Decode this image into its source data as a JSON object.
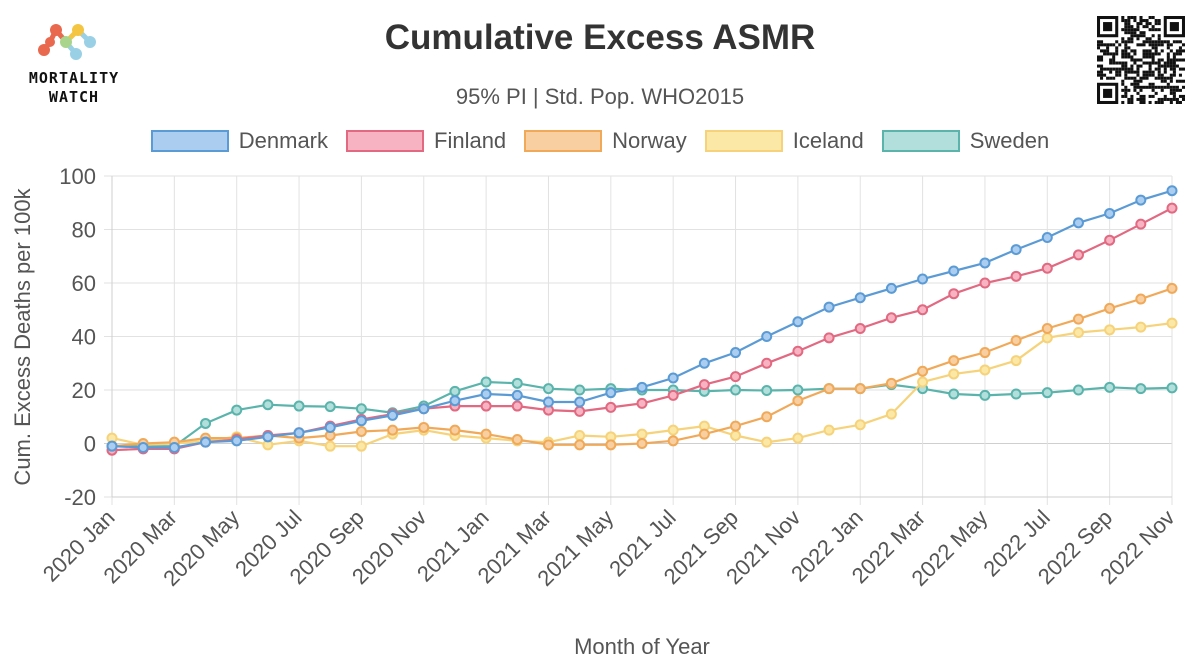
{
  "logo": {
    "line1": "MORTALITY",
    "line2": "WATCH"
  },
  "chart_data": {
    "type": "line",
    "title": "Cumulative Excess ASMR",
    "subtitle": "95% PI | Std. Pop. WHO2015",
    "xlabel": "Month of Year",
    "ylabel": "Cum. Excess Deaths per 100k",
    "ylim": [
      -20,
      100
    ],
    "yticks": [
      -20,
      0,
      20,
      40,
      60,
      80,
      100
    ],
    "grid": true,
    "legend_position": "top",
    "x": [
      "2020 Jan",
      "2020 Feb",
      "2020 Mar",
      "2020 Apr",
      "2020 May",
      "2020 Jun",
      "2020 Jul",
      "2020 Aug",
      "2020 Sep",
      "2020 Oct",
      "2020 Nov",
      "2020 Dec",
      "2021 Jan",
      "2021 Feb",
      "2021 Mar",
      "2021 Apr",
      "2021 May",
      "2021 Jun",
      "2021 Jul",
      "2021 Aug",
      "2021 Sep",
      "2021 Oct",
      "2021 Nov",
      "2021 Dec",
      "2022 Jan",
      "2022 Feb",
      "2022 Mar",
      "2022 Apr",
      "2022 May",
      "2022 Jun",
      "2022 Jul",
      "2022 Aug",
      "2022 Sep",
      "2022 Oct",
      "2022 Nov"
    ],
    "xtick_labels": [
      "2020 Jan",
      "2020 Mar",
      "2020 May",
      "2020 Jul",
      "2020 Sep",
      "2020 Nov",
      "2021 Jan",
      "2021 Mar",
      "2021 May",
      "2021 Jul",
      "2021 Sep",
      "2021 Nov",
      "2022 Jan",
      "2022 Mar",
      "2022 May",
      "2022 Jul",
      "2022 Sep",
      "2022 Nov"
    ],
    "series": [
      {
        "name": "Sweden",
        "color": "#5ab4ac",
        "fill": "#b2dfdb",
        "values": [
          -1,
          -1,
          -1,
          7.5,
          12.5,
          14.5,
          14,
          13.8,
          13,
          11.5,
          14,
          19.5,
          23,
          22.5,
          20.5,
          20,
          20.5,
          20,
          20,
          19.5,
          20,
          19.8,
          20,
          20.5,
          20.5,
          22,
          20.5,
          18.5,
          18,
          18.5,
          19,
          20,
          21,
          20.5,
          20.8
        ]
      },
      {
        "name": "Iceland",
        "color": "#f6d37a",
        "fill": "#fce8a6",
        "values": [
          2,
          -0.5,
          0,
          1,
          2.5,
          -0.5,
          1,
          -1,
          -1,
          3.5,
          5,
          3,
          2,
          1,
          0.5,
          3,
          2.5,
          3.5,
          5,
          6.5,
          3,
          0.5,
          2,
          5,
          7,
          11,
          23,
          26,
          27.5,
          31,
          39.5,
          41.5,
          42.5,
          43.5,
          45
        ]
      },
      {
        "name": "Norway",
        "color": "#f0a959",
        "fill": "#f8cfa0",
        "values": [
          -1,
          0,
          0.5,
          2,
          2,
          3,
          2,
          3,
          4.5,
          5,
          6,
          5,
          3.5,
          1.5,
          -0.5,
          -0.5,
          -0.5,
          0,
          1,
          3.5,
          6.5,
          10,
          16,
          20.5,
          20.5,
          22.5,
          27,
          31,
          34,
          38.5,
          43,
          46.5,
          50.5,
          54,
          58
        ]
      },
      {
        "name": "Finland",
        "color": "#e16981",
        "fill": "#f8b3c2",
        "values": [
          -2.5,
          -2,
          -2,
          0.5,
          1.5,
          3,
          4,
          6.5,
          9,
          11,
          13,
          14,
          14,
          14,
          12.5,
          12,
          13.5,
          15,
          18,
          22,
          25,
          30,
          34.5,
          39.5,
          43,
          47,
          50,
          56,
          60,
          62.5,
          65.5,
          70.5,
          76,
          82,
          88
        ]
      },
      {
        "name": "Denmark",
        "color": "#5b9bd5",
        "fill": "#aacdf0",
        "values": [
          -1,
          -1.5,
          -1.5,
          0.5,
          1,
          2.5,
          4,
          6,
          8.5,
          10.5,
          13,
          16,
          18.5,
          18,
          15.5,
          15.5,
          19,
          21,
          24.5,
          30,
          34,
          40,
          45.5,
          51,
          54.5,
          58,
          61.5,
          64.5,
          67.5,
          72.5,
          77,
          82.5,
          86,
          91,
          94.5
        ]
      }
    ]
  }
}
